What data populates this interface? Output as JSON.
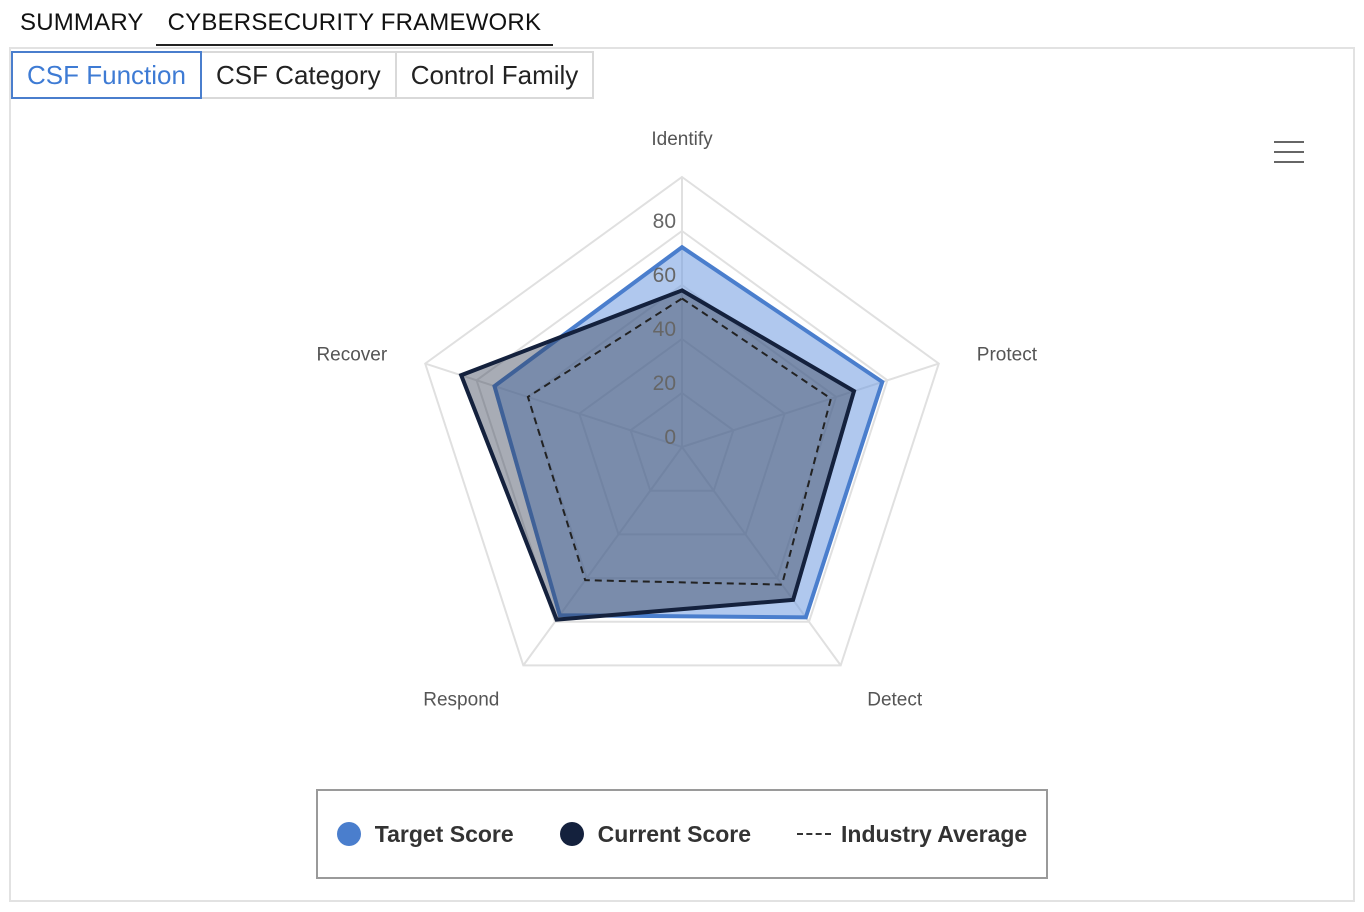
{
  "top_tabs": [
    {
      "label": "SUMMARY",
      "active": false
    },
    {
      "label": "CYBERSECURITY FRAMEWORK",
      "active": true
    }
  ],
  "sub_tabs": [
    {
      "label": "CSF Function",
      "active": true
    },
    {
      "label": "CSF Category",
      "active": false
    },
    {
      "label": "Control Family",
      "active": false
    }
  ],
  "menu_icon": "hamburger-menu-icon",
  "colors": {
    "target": "#4a7ecd",
    "target_fill": "#6f9be0",
    "current": "#14213d",
    "current_fill": "#2f3a4e",
    "industry": "#222222",
    "grid": "#e0e0e0"
  },
  "chart_data": {
    "type": "radar",
    "title": "",
    "categories": [
      "Identify",
      "Protect",
      "Detect",
      "Respond",
      "Recover"
    ],
    "ticks": [
      0,
      20,
      40,
      60,
      80
    ],
    "range": [
      0,
      100
    ],
    "legend_position": "bottom",
    "series": [
      {
        "name": "Target Score",
        "values": [
          74,
          78,
          78,
          77,
          73
        ],
        "style": "filled-area"
      },
      {
        "name": "Current Score",
        "values": [
          58,
          67,
          70,
          79,
          86
        ],
        "style": "filled-area"
      },
      {
        "name": "Industry Average",
        "values": [
          55,
          58,
          63,
          61,
          60
        ],
        "style": "dashed-line"
      }
    ]
  }
}
